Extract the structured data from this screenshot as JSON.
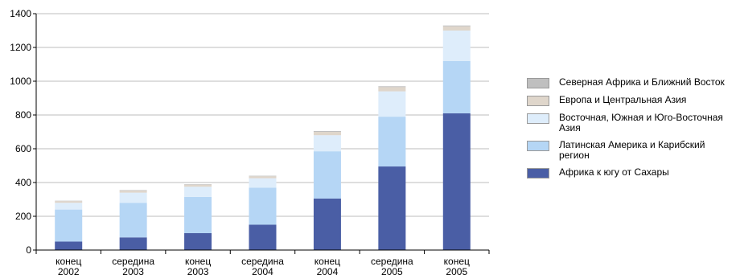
{
  "chart_data": {
    "type": "bar",
    "stacked": true,
    "categories": [
      [
        "конец",
        "2002"
      ],
      [
        "середина",
        "2003"
      ],
      [
        "конец",
        "2003"
      ],
      [
        "середина",
        "2004"
      ],
      [
        "конец",
        "2004"
      ],
      [
        "середина",
        "2005"
      ],
      [
        "конец",
        "2005"
      ]
    ],
    "ylim": [
      0,
      1400
    ],
    "yticks": [
      0,
      200,
      400,
      600,
      800,
      1000,
      1200,
      1400
    ],
    "grid": true,
    "legend_position": "right",
    "series": [
      {
        "name": "Африка к югу от Сахары",
        "color": "#4a5ea5",
        "values": [
          50,
          75,
          100,
          150,
          305,
          495,
          810
        ]
      },
      {
        "name": "Латинская Америка и Карибский регион",
        "color": "#b5d6f5",
        "values": [
          190,
          205,
          215,
          220,
          280,
          295,
          310
        ]
      },
      {
        "name": "Восточная, Южная и Юго-Восточная Азия",
        "color": "#deedfb",
        "values": [
          40,
          60,
          60,
          55,
          95,
          150,
          180
        ]
      },
      {
        "name": "Европа и Центральная Азия",
        "color": "#dfd6cb",
        "values": [
          10,
          12,
          12,
          12,
          20,
          25,
          25
        ]
      },
      {
        "name": "Северная Африка и Ближний Восток",
        "color": "#bfbfbf",
        "values": [
          2,
          3,
          3,
          3,
          5,
          5,
          5
        ]
      }
    ]
  }
}
